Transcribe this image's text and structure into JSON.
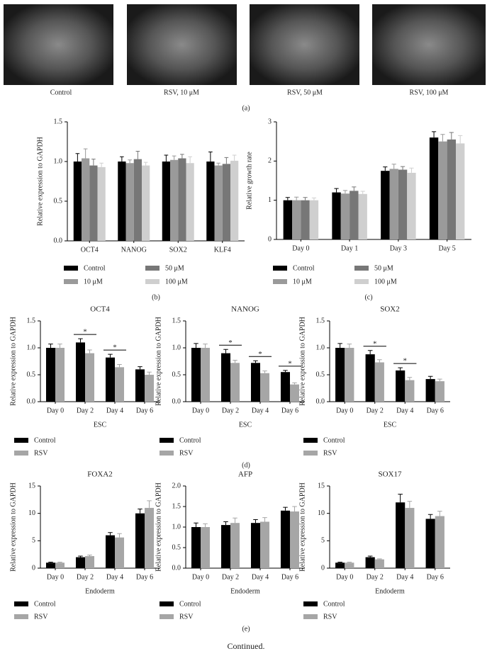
{
  "panel_a": {
    "captions": [
      "Control",
      "RSV, 10 μM",
      "RSV, 50 μM",
      "RSV, 100 μM"
    ]
  },
  "panel_labels": [
    "(a)",
    "(b)",
    "(c)",
    "(d)",
    "(e)"
  ],
  "footer": "Continued.",
  "chart_data": [
    {
      "type": "bar",
      "y_label": "Relative expression to GAPDH",
      "categories": [
        "OCT4",
        "NANOG",
        "SOX2",
        "KLF4"
      ],
      "series": [
        {
          "name": "Control",
          "color": "#000000",
          "values": [
            1.0,
            1.0,
            1.0,
            1.0
          ],
          "errors": [
            0.1,
            0.06,
            0.08,
            0.12
          ]
        },
        {
          "name": "10 μM",
          "color": "#9a9a9a",
          "values": [
            1.04,
            0.98,
            1.02,
            0.95
          ],
          "errors": [
            0.12,
            0.04,
            0.05,
            0.03
          ]
        },
        {
          "name": "50 μM",
          "color": "#777777",
          "values": [
            0.95,
            1.03,
            1.04,
            0.97
          ],
          "errors": [
            0.08,
            0.1,
            0.05,
            0.08
          ]
        },
        {
          "name": "100 μM",
          "color": "#cfcfcf",
          "values": [
            0.93,
            0.95,
            0.98,
            1.01
          ],
          "errors": [
            0.05,
            0.04,
            0.08,
            0.07
          ]
        }
      ],
      "ylim": [
        0,
        1.5
      ],
      "yticks": [
        {
          "value": 0,
          "label": "0.0"
        },
        0.5,
        {
          "value": 1,
          "label": "1.0"
        },
        1.5
      ]
    },
    {
      "type": "bar",
      "y_label": "Relative growth rate",
      "categories": [
        "Day 0",
        "Day 1",
        "Day 3",
        "Day 5"
      ],
      "series": [
        {
          "name": "Control",
          "color": "#000000",
          "values": [
            1.0,
            1.2,
            1.75,
            2.6
          ],
          "errors": [
            0.07,
            0.1,
            0.1,
            0.15
          ]
        },
        {
          "name": "10 μM",
          "color": "#9a9a9a",
          "values": [
            1.0,
            1.17,
            1.8,
            2.5
          ],
          "errors": [
            0.08,
            0.08,
            0.12,
            0.18
          ]
        },
        {
          "name": "50 μM",
          "color": "#777777",
          "values": [
            1.0,
            1.24,
            1.78,
            2.55
          ],
          "errors": [
            0.07,
            0.1,
            0.08,
            0.18
          ]
        },
        {
          "name": "100 μM",
          "color": "#cfcfcf",
          "values": [
            1.0,
            1.16,
            1.7,
            2.45
          ],
          "errors": [
            0.06,
            0.07,
            0.12,
            0.2
          ]
        }
      ],
      "ylim": [
        0,
        3
      ],
      "yticks": [
        0,
        1,
        2,
        3
      ]
    },
    {
      "type": "bar",
      "title": "OCT4",
      "y_label": "Relative expression to GAPDH",
      "x_label": "ESC",
      "categories": [
        "Day 0",
        "Day 2",
        "Day 4",
        "Day 6"
      ],
      "series": [
        {
          "name": "Control",
          "color": "#000000",
          "values": [
            1.0,
            1.1,
            0.82,
            0.6
          ],
          "errors": [
            0.07,
            0.07,
            0.06,
            0.05
          ]
        },
        {
          "name": "RSV",
          "color": "#a6a6a6",
          "values": [
            1.0,
            0.9,
            0.64,
            0.5
          ],
          "errors": [
            0.07,
            0.06,
            0.05,
            0.05
          ]
        }
      ],
      "significance": [
        null,
        "*",
        "*",
        null
      ],
      "ylim": [
        0,
        1.5
      ],
      "yticks": [
        {
          "value": 0,
          "label": "0.0"
        },
        0.5,
        {
          "value": 1,
          "label": "1.0"
        },
        1.5
      ]
    },
    {
      "type": "bar",
      "title": "NANOG",
      "y_label": "Relative expression to GAPDH",
      "x_label": "ESC",
      "categories": [
        "Day 0",
        "Day 2",
        "Day 4",
        "Day 6"
      ],
      "series": [
        {
          "name": "Control",
          "color": "#000000",
          "values": [
            1.0,
            0.9,
            0.72,
            0.55
          ],
          "errors": [
            0.08,
            0.07,
            0.04,
            0.03
          ]
        },
        {
          "name": "RSV",
          "color": "#a6a6a6",
          "values": [
            1.0,
            0.72,
            0.53,
            0.32
          ],
          "errors": [
            0.07,
            0.05,
            0.04,
            0.03
          ]
        }
      ],
      "significance": [
        null,
        "*",
        "*",
        "*"
      ],
      "ylim": [
        0,
        1.5
      ],
      "yticks": [
        {
          "value": 0,
          "label": "0.0"
        },
        0.5,
        {
          "value": 1,
          "label": "1.0"
        },
        1.5
      ]
    },
    {
      "type": "bar",
      "title": "SOX2",
      "y_label": "Relative expression to GAPDH",
      "x_label": "ESC",
      "categories": [
        "Day 0",
        "Day 2",
        "Day 4",
        "Day 6"
      ],
      "series": [
        {
          "name": "Control",
          "color": "#000000",
          "values": [
            1.0,
            0.88,
            0.58,
            0.42
          ],
          "errors": [
            0.08,
            0.07,
            0.05,
            0.05
          ]
        },
        {
          "name": "RSV",
          "color": "#a6a6a6",
          "values": [
            1.0,
            0.73,
            0.4,
            0.38
          ],
          "errors": [
            0.07,
            0.05,
            0.05,
            0.04
          ]
        }
      ],
      "significance": [
        null,
        "*",
        "*",
        null
      ],
      "ylim": [
        0,
        1.5
      ],
      "yticks": [
        {
          "value": 0,
          "label": "0.0"
        },
        0.5,
        {
          "value": 1,
          "label": "1.0"
        },
        1.5
      ]
    },
    {
      "type": "bar",
      "title": "FOXA2",
      "y_label": "Relative expression to GAPDH",
      "x_label": "Endoderm",
      "categories": [
        "Day 0",
        "Day 2",
        "Day 4",
        "Day 6"
      ],
      "series": [
        {
          "name": "Control",
          "color": "#000000",
          "values": [
            1.0,
            2.0,
            6.0,
            10.0
          ],
          "errors": [
            0.1,
            0.2,
            0.5,
            0.8
          ]
        },
        {
          "name": "RSV",
          "color": "#a6a6a6",
          "values": [
            1.0,
            2.2,
            5.6,
            11.0
          ],
          "errors": [
            0.1,
            0.2,
            0.7,
            1.3
          ]
        }
      ],
      "ylim": [
        0,
        15
      ],
      "yticks": [
        0,
        5,
        10,
        15
      ]
    },
    {
      "type": "bar",
      "title": "AFP",
      "y_label": "Relative expression to GAPDH",
      "x_label": "Endoderm",
      "categories": [
        "Day 0",
        "Day 2",
        "Day 4",
        "Day 6"
      ],
      "series": [
        {
          "name": "Control",
          "color": "#000000",
          "values": [
            1.0,
            1.05,
            1.1,
            1.4
          ],
          "errors": [
            0.1,
            0.08,
            0.08,
            0.08
          ]
        },
        {
          "name": "RSV",
          "color": "#a6a6a6",
          "values": [
            1.0,
            1.1,
            1.13,
            1.38
          ],
          "errors": [
            0.08,
            0.12,
            0.1,
            0.12
          ]
        }
      ],
      "ylim": [
        0,
        2
      ],
      "yticks": [
        {
          "value": 0,
          "label": "0.0"
        },
        0.5,
        {
          "value": 1,
          "label": "1.0"
        },
        1.5,
        {
          "value": 2,
          "label": "2.0"
        }
      ]
    },
    {
      "type": "bar",
      "title": "SOX17",
      "y_label": "Relative expression to GAPDH",
      "x_label": "Endoderm",
      "categories": [
        "Day 0",
        "Day 2",
        "Day 4",
        "Day 6"
      ],
      "series": [
        {
          "name": "Control",
          "color": "#000000",
          "values": [
            1.0,
            2.0,
            12.0,
            9.0
          ],
          "errors": [
            0.1,
            0.2,
            1.5,
            0.8
          ]
        },
        {
          "name": "RSV",
          "color": "#a6a6a6",
          "values": [
            1.0,
            1.6,
            11.0,
            9.5
          ],
          "errors": [
            0.1,
            0.1,
            1.2,
            0.9
          ]
        }
      ],
      "ylim": [
        0,
        15
      ],
      "yticks": [
        0,
        5,
        10,
        15
      ]
    }
  ]
}
